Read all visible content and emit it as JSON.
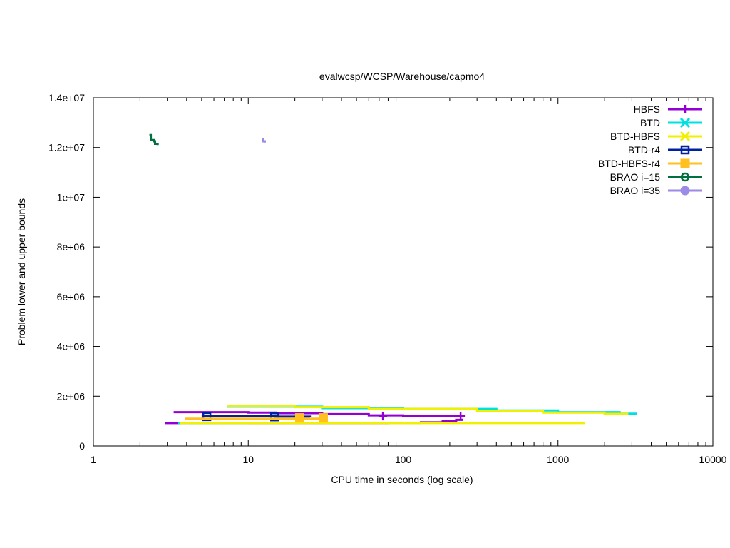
{
  "chart_data": {
    "type": "line",
    "title": "evalwcsp/WCSP/Warehouse/capmo4",
    "xlabel": "CPU time in seconds (log scale)",
    "ylabel": "Problem lower and upper bounds",
    "xscale": "log",
    "xlim": [
      1,
      10000
    ],
    "ylim": [
      0,
      14000000
    ],
    "grid": false,
    "legend": "top-right",
    "x_ticks": [
      {
        "value": 1,
        "label": "1"
      },
      {
        "value": 10,
        "label": "10"
      },
      {
        "value": 100,
        "label": "100"
      },
      {
        "value": 1000,
        "label": "1000"
      },
      {
        "value": 10000,
        "label": "10000"
      }
    ],
    "y_ticks": [
      {
        "value": 0,
        "label": "0"
      },
      {
        "value": 2000000,
        "label": "2e+06"
      },
      {
        "value": 4000000,
        "label": "4e+06"
      },
      {
        "value": 6000000,
        "label": "6e+06"
      },
      {
        "value": 8000000,
        "label": "8e+06"
      },
      {
        "value": 10000000,
        "label": "1e+07"
      },
      {
        "value": 12000000,
        "label": "1.2e+07"
      },
      {
        "value": 14000000,
        "label": "1.4e+07"
      }
    ],
    "series": [
      {
        "name": "HBFS",
        "color": "#9400d3",
        "marker": "plus",
        "upper": [
          [
            3.3,
            1360000
          ],
          [
            10,
            1340000
          ],
          [
            15,
            1320000
          ],
          [
            30,
            1280000
          ],
          [
            60,
            1230000
          ],
          [
            100,
            1210000
          ],
          [
            240,
            1200000
          ]
        ],
        "lower": [
          [
            2.9,
            920000
          ],
          [
            10,
            920000
          ],
          [
            80,
            930000
          ],
          [
            130,
            950000
          ],
          [
            180,
            1000000
          ],
          [
            220,
            1050000
          ],
          [
            240,
            1100000
          ]
        ],
        "marker_points": [
          [
            74,
            1200000
          ],
          [
            235,
            1200000
          ]
        ]
      },
      {
        "name": "BTD",
        "color": "#00e0e0",
        "marker": "x",
        "upper": [
          [
            7.3,
            1580000
          ],
          [
            30,
            1520000
          ],
          [
            100,
            1490000
          ],
          [
            400,
            1430000
          ],
          [
            1000,
            1360000
          ],
          [
            2500,
            1300000
          ],
          [
            3200,
            1260000
          ]
        ],
        "lower": [
          [
            3.5,
            920000
          ],
          [
            10,
            920000
          ]
        ],
        "marker_points": []
      },
      {
        "name": "BTD-HBFS",
        "color": "#f0f000",
        "marker": "x",
        "upper": [
          [
            7.3,
            1620000
          ],
          [
            20,
            1560000
          ],
          [
            60,
            1490000
          ],
          [
            300,
            1420000
          ],
          [
            800,
            1340000
          ],
          [
            2000,
            1290000
          ],
          [
            2800,
            1260000
          ]
        ],
        "lower": [
          [
            3.6,
            920000
          ],
          [
            100,
            920000
          ],
          [
            1500,
            920000
          ]
        ],
        "marker_points": []
      },
      {
        "name": "BTD-r4",
        "color": "#0020a0",
        "marker": "square-open",
        "upper": [
          [
            5.0,
            1200000
          ],
          [
            15,
            1180000
          ],
          [
            25,
            1160000
          ]
        ],
        "lower": [],
        "marker_points": [
          [
            5.4,
            1180000
          ],
          [
            14.8,
            1170000
          ]
        ]
      },
      {
        "name": "BTD-HBFS-r4",
        "color": "#ffc020",
        "marker": "square-filled",
        "upper": [
          [
            3.9,
            1100000
          ],
          [
            10,
            1100000
          ],
          [
            32,
            1090000
          ]
        ],
        "lower": [],
        "marker_points": [
          [
            21.5,
            1130000
          ],
          [
            30.5,
            1130000
          ]
        ]
      },
      {
        "name": "BRAO i=15",
        "color": "#007040",
        "marker": "circle",
        "upper": [
          [
            2.3,
            12500000
          ],
          [
            2.35,
            12300000
          ],
          [
            2.45,
            12250000
          ],
          [
            2.5,
            12150000
          ],
          [
            2.6,
            12100000
          ]
        ],
        "lower": [],
        "marker_points": []
      },
      {
        "name": "BRAO i=35",
        "color": "#9b8ae6",
        "marker": "circle-filled",
        "upper": [
          [
            12.3,
            12350000
          ],
          [
            12.5,
            12250000
          ],
          [
            12.8,
            12200000
          ]
        ],
        "lower": [],
        "marker_points": []
      }
    ]
  }
}
